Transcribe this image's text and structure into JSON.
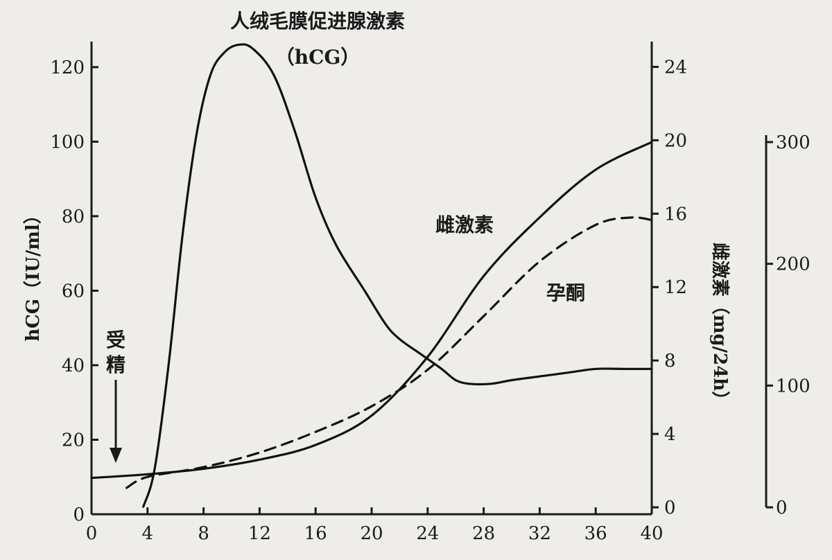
{
  "chart_data": {
    "type": "line",
    "x_ticks": [
      0,
      4,
      8,
      12,
      16,
      20,
      24,
      28,
      32,
      36,
      40
    ],
    "xlim": [
      0,
      40
    ],
    "axes": {
      "left": {
        "label": "hCG（IU/ml）",
        "ticks": [
          0,
          20,
          40,
          60,
          80,
          100,
          120
        ],
        "ylim": [
          0,
          125
        ]
      },
      "right1": {
        "label": "雌激素（mg/24h）",
        "ticks": [
          0,
          4,
          8,
          12,
          16,
          20,
          24
        ],
        "ylim": [
          0,
          25
        ]
      },
      "right2": {
        "label": "",
        "ticks": [
          0,
          100,
          200,
          300
        ],
        "ylim": [
          0,
          300
        ]
      }
    },
    "series": [
      {
        "name": "hCG",
        "axis": "left",
        "style": "solid",
        "color": "#111111",
        "points": [
          [
            3.7,
            2
          ],
          [
            4.5,
            12
          ],
          [
            5.5,
            40
          ],
          [
            6.5,
            75
          ],
          [
            7.5,
            102
          ],
          [
            8.5,
            118
          ],
          [
            9.5,
            124
          ],
          [
            10.5,
            126
          ],
          [
            11.5,
            125
          ],
          [
            13,
            118
          ],
          [
            14.5,
            103
          ],
          [
            16,
            85
          ],
          [
            17.5,
            72
          ],
          [
            19.5,
            60
          ],
          [
            21,
            51
          ],
          [
            22,
            47
          ],
          [
            23.5,
            43
          ],
          [
            25,
            39
          ],
          [
            26,
            36
          ],
          [
            27,
            35
          ],
          [
            28.5,
            35
          ],
          [
            30,
            36
          ],
          [
            32,
            37
          ],
          [
            34,
            38
          ],
          [
            36,
            39
          ],
          [
            38,
            39
          ],
          [
            40,
            39
          ]
        ]
      },
      {
        "name": "雌激素",
        "axis": "right1",
        "style": "solid",
        "color": "#111111",
        "points": [
          [
            0,
            1.6
          ],
          [
            4,
            1.8
          ],
          [
            8,
            2.1
          ],
          [
            12,
            2.6
          ],
          [
            16,
            3.4
          ],
          [
            20,
            5.0
          ],
          [
            24,
            8.2
          ],
          [
            28,
            12.6
          ],
          [
            32,
            15.8
          ],
          [
            36,
            18.4
          ],
          [
            40,
            19.9
          ]
        ]
      },
      {
        "name": "孕酮",
        "axis": "right2",
        "style": "dashed",
        "color": "#111111",
        "points": [
          [
            2.5,
            16
          ],
          [
            4,
            25
          ],
          [
            8,
            33
          ],
          [
            12,
            45
          ],
          [
            16,
            62
          ],
          [
            20,
            83
          ],
          [
            24,
            113
          ],
          [
            28,
            157
          ],
          [
            32,
            202
          ],
          [
            36,
            232
          ],
          [
            38.5,
            238
          ],
          [
            40,
            236
          ]
        ]
      }
    ],
    "annotations": {
      "hcg_title_line1": "人绒毛膜促进腺激素",
      "hcg_title_line2": "（hCG）",
      "estrogen": "雌激素",
      "progesterone": "孕酮",
      "fertilization": "受精",
      "x_axis_title": ""
    }
  }
}
